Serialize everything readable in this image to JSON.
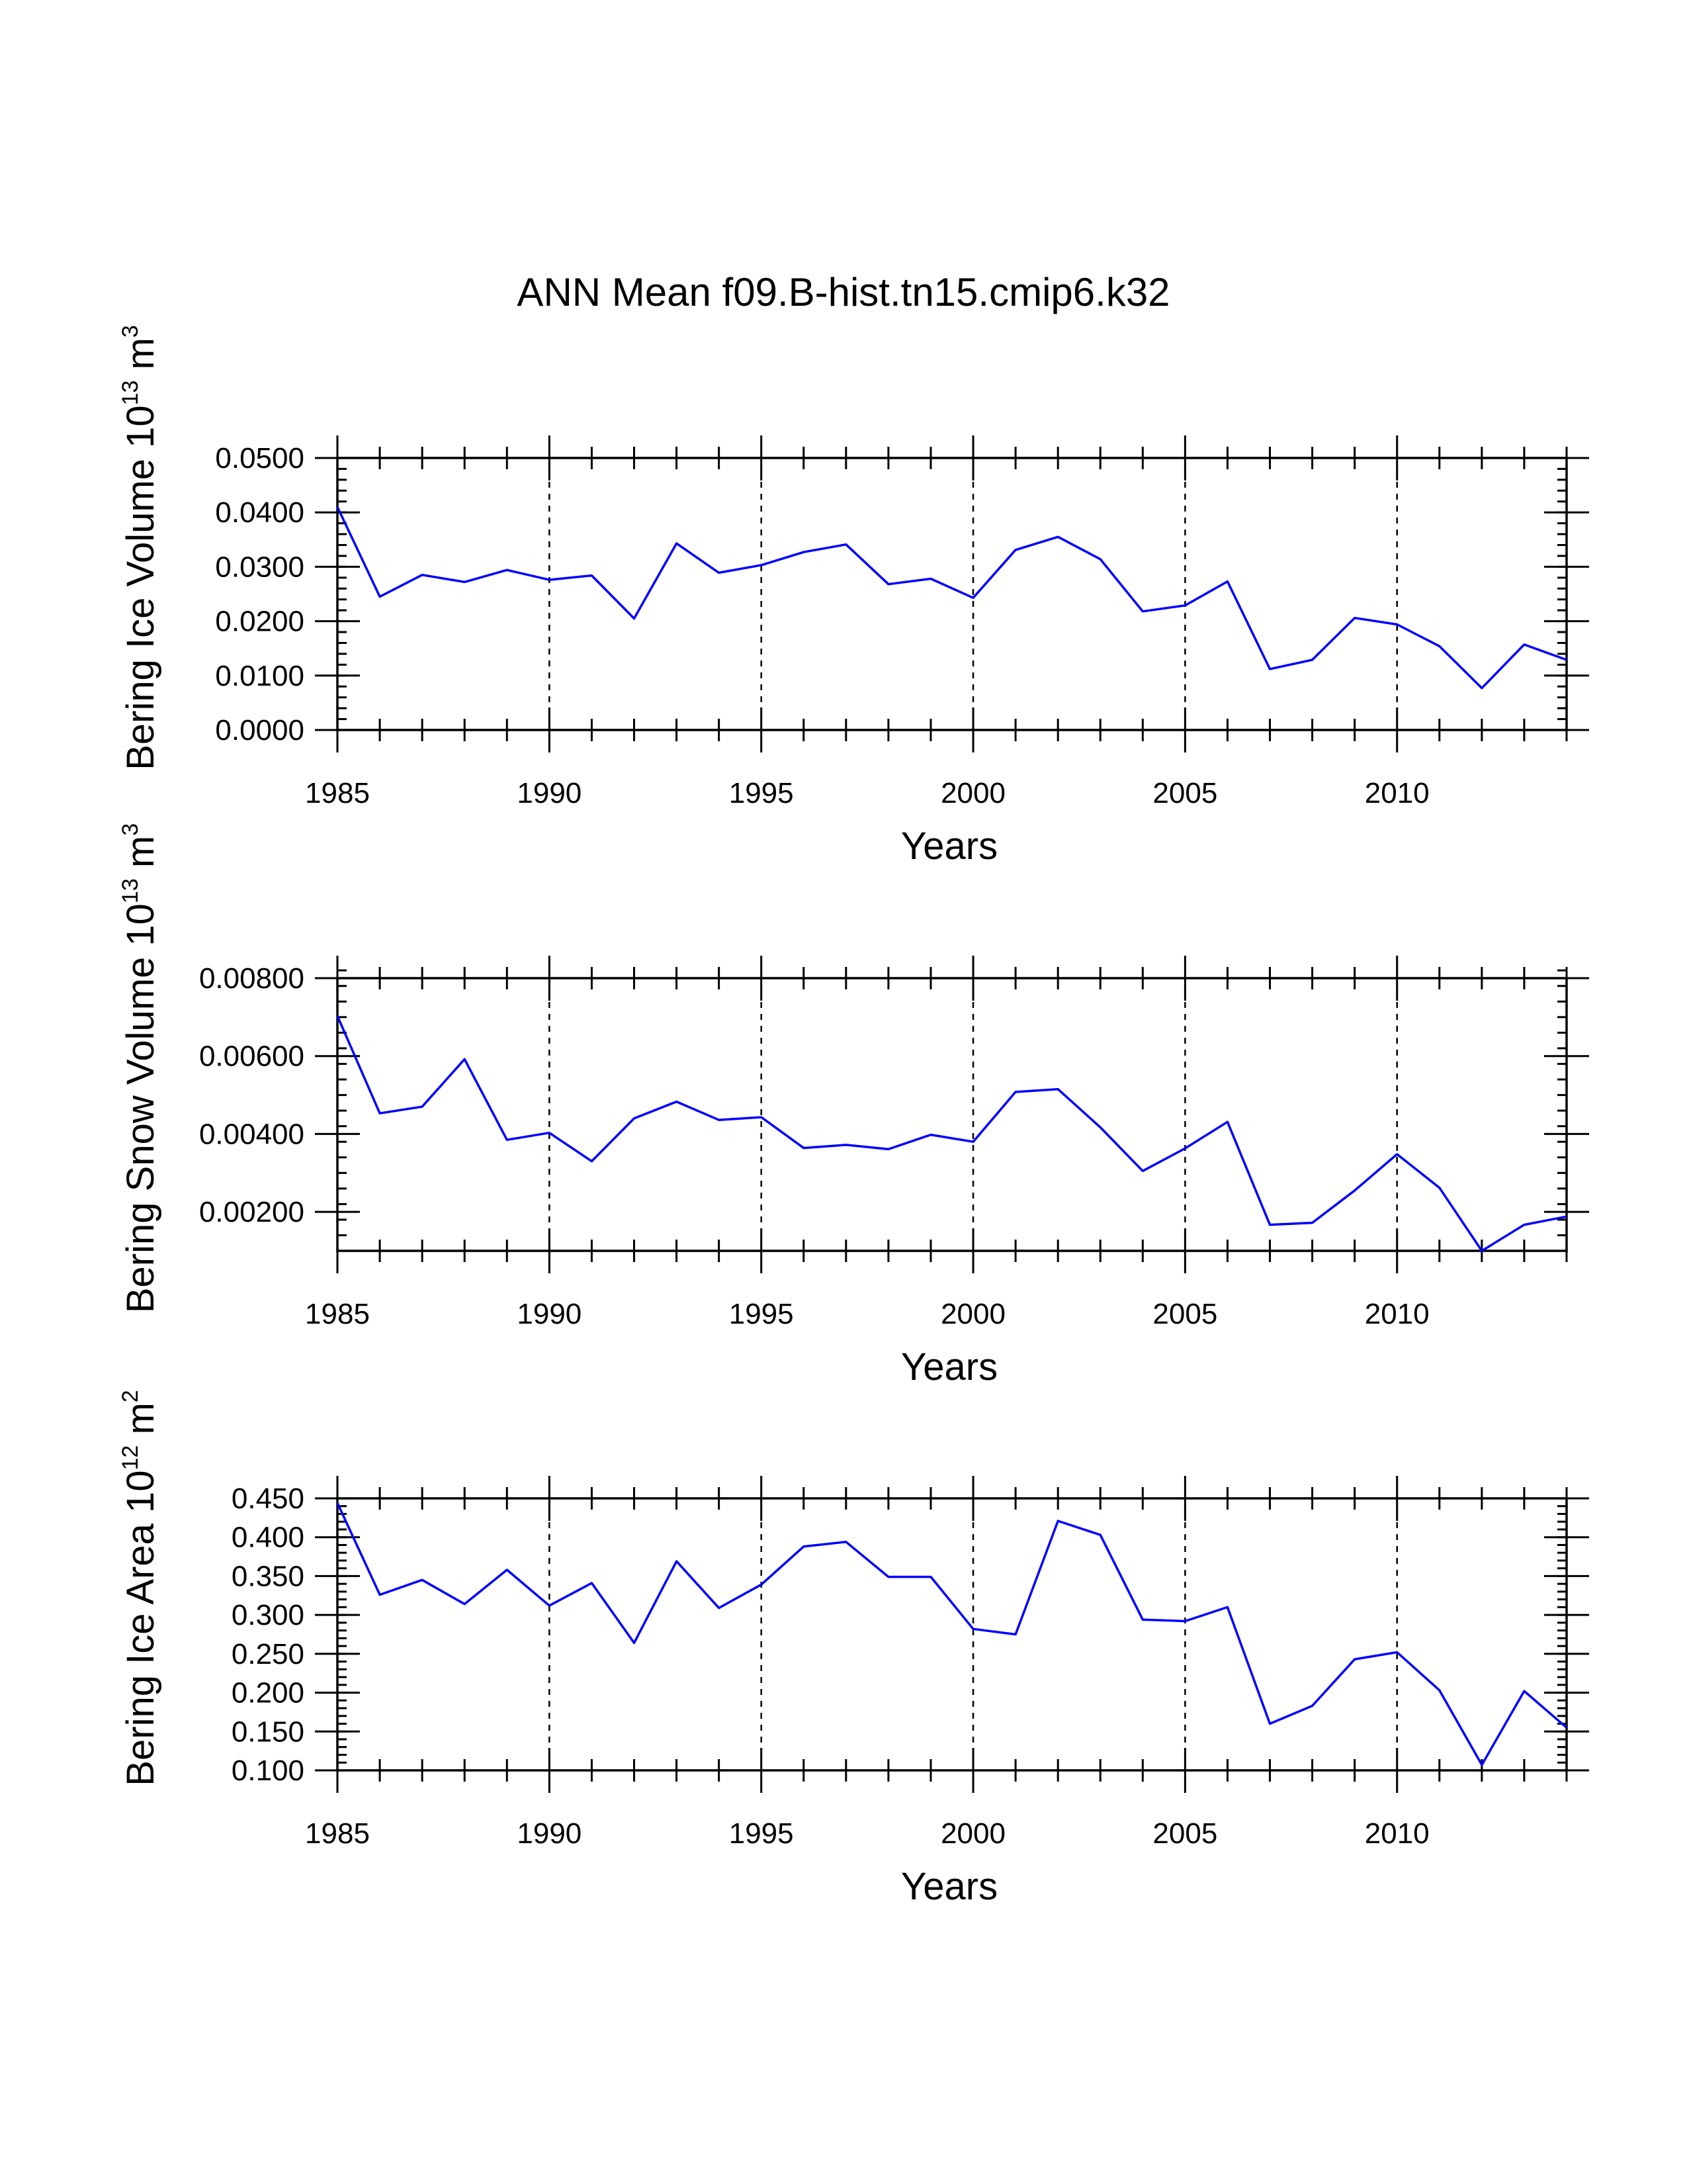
{
  "title": "ANN Mean f09.B-hist.tn15.cmip6.k32",
  "chart_data": [
    {
      "type": "line",
      "title": "",
      "xlabel": "Years",
      "ylabel": {
        "prefix": "Bering Ice Volume 10",
        "exponent": "13",
        "unit": " m",
        "unit_exponent": "3"
      },
      "x": [
        1985,
        1986,
        1987,
        1988,
        1989,
        1990,
        1991,
        1992,
        1993,
        1994,
        1995,
        1996,
        1997,
        1998,
        1999,
        2000,
        2001,
        2002,
        2003,
        2004,
        2005,
        2006,
        2007,
        2008,
        2009,
        2010,
        2011,
        2012,
        2013,
        2014
      ],
      "series": [
        {
          "name": "Bering Ice Volume",
          "color": "#0000ff",
          "values": [
            0.041,
            0.0245,
            0.0285,
            0.0272,
            0.0294,
            0.0276,
            0.0284,
            0.0205,
            0.0343,
            0.0289,
            0.0303,
            0.0327,
            0.0341,
            0.0268,
            0.0278,
            0.0243,
            0.0331,
            0.0355,
            0.0314,
            0.0218,
            0.0229,
            0.0273,
            0.0112,
            0.0129,
            0.0206,
            0.0194,
            0.0154,
            0.0077,
            0.0157,
            0.0129
          ]
        }
      ],
      "xlim": [
        1985,
        2014
      ],
      "ylim": [
        0,
        0.05
      ],
      "xticks": [
        1985,
        1990,
        1995,
        2000,
        2005,
        2010
      ],
      "xtick_labels": [
        "1985",
        "1990",
        "1995",
        "2000",
        "2005",
        "2010"
      ],
      "yticks": [
        0,
        0.01,
        0.02,
        0.03,
        0.04,
        0.05
      ],
      "ytick_labels": [
        "0.0000",
        "0.0100",
        "0.0200",
        "0.0300",
        "0.0400",
        "0.0500"
      ],
      "grid": "dashed vertical at major x ticks"
    },
    {
      "type": "line",
      "title": "",
      "xlabel": "Years",
      "ylabel": {
        "prefix": "Bering Snow Volume 10",
        "exponent": "13",
        "unit": " m",
        "unit_exponent": "3"
      },
      "x": [
        1985,
        1986,
        1987,
        1988,
        1989,
        1990,
        1991,
        1992,
        1993,
        1994,
        1995,
        1996,
        1997,
        1998,
        1999,
        2000,
        2001,
        2002,
        2003,
        2004,
        2005,
        2006,
        2007,
        2008,
        2009,
        2010,
        2011,
        2012,
        2013,
        2014
      ],
      "series": [
        {
          "name": "Bering Snow Volume",
          "color": "#0000ff",
          "values": [
            0.00703,
            0.00453,
            0.0047,
            0.00592,
            0.00385,
            0.00403,
            0.0033,
            0.0044,
            0.00483,
            0.00436,
            0.00443,
            0.00364,
            0.00372,
            0.00361,
            0.00398,
            0.0038,
            0.00508,
            0.00515,
            0.00417,
            0.00305,
            0.00363,
            0.00431,
            0.00167,
            0.00172,
            0.00255,
            0.00348,
            0.00262,
            0.001,
            0.00167,
            0.00188
          ]
        }
      ],
      "xlim": [
        1985,
        2014
      ],
      "ylim": [
        0.001,
        0.008
      ],
      "xticks": [
        1985,
        1990,
        1995,
        2000,
        2005,
        2010
      ],
      "xtick_labels": [
        "1985",
        "1990",
        "1995",
        "2000",
        "2005",
        "2010"
      ],
      "yticks": [
        0.002,
        0.004,
        0.006,
        0.008
      ],
      "ytick_labels": [
        "0.00200",
        "0.00400",
        "0.00600",
        "0.00800"
      ],
      "grid": "dashed vertical at major x ticks"
    },
    {
      "type": "line",
      "title": "",
      "xlabel": "Years",
      "ylabel": {
        "prefix": "Bering Ice Area 10",
        "exponent": "12",
        "unit": " m",
        "unit_exponent": "2"
      },
      "x": [
        1985,
        1986,
        1987,
        1988,
        1989,
        1990,
        1991,
        1992,
        1993,
        1994,
        1995,
        1996,
        1997,
        1998,
        1999,
        2000,
        2001,
        2002,
        2003,
        2004,
        2005,
        2006,
        2007,
        2008,
        2009,
        2010,
        2011,
        2012,
        2013,
        2014
      ],
      "series": [
        {
          "name": "Bering Ice Area",
          "color": "#0000ff",
          "values": [
            0.444,
            0.326,
            0.345,
            0.314,
            0.358,
            0.312,
            0.341,
            0.264,
            0.369,
            0.309,
            0.339,
            0.388,
            0.394,
            0.349,
            0.349,
            0.282,
            0.275,
            0.421,
            0.403,
            0.294,
            0.292,
            0.31,
            0.16,
            0.183,
            0.243,
            0.252,
            0.203,
            0.107,
            0.202,
            0.155
          ]
        }
      ],
      "xlim": [
        1985,
        2014
      ],
      "ylim": [
        0.1,
        0.45
      ],
      "xticks": [
        1985,
        1990,
        1995,
        2000,
        2005,
        2010
      ],
      "xtick_labels": [
        "1985",
        "1990",
        "1995",
        "2000",
        "2005",
        "2010"
      ],
      "yticks": [
        0.1,
        0.15,
        0.2,
        0.25,
        0.3,
        0.35,
        0.4,
        0.45
      ],
      "ytick_labels": [
        "0.100",
        "0.150",
        "0.200",
        "0.250",
        "0.300",
        "0.350",
        "0.400",
        "0.450"
      ],
      "grid": "dashed vertical at major x ticks"
    }
  ]
}
